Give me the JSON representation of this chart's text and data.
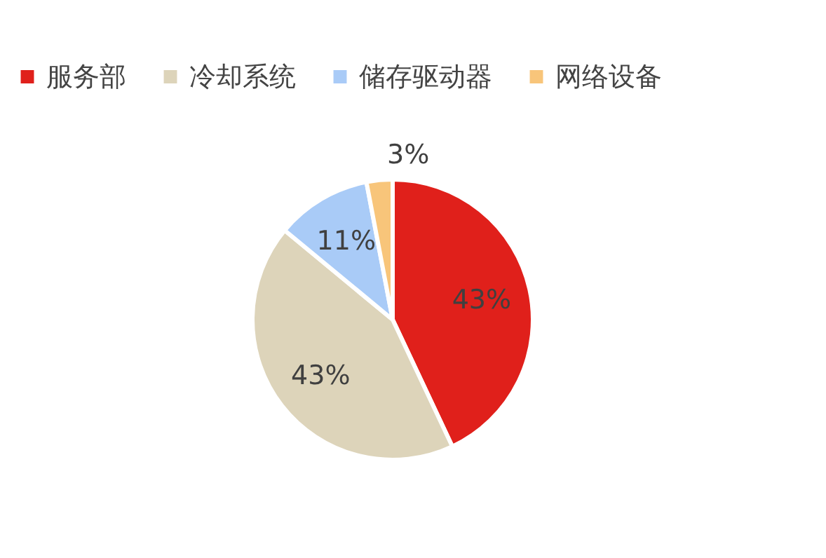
{
  "chart_data": {
    "type": "pie",
    "categories": [
      "服务部",
      "冷却系统",
      "储存驱动器",
      "网络设备"
    ],
    "values": [
      43,
      43,
      11,
      3
    ],
    "colors": [
      "#e0201b",
      "#ddd4ba",
      "#a9cbf7",
      "#f8c57a"
    ],
    "value_labels": [
      "43%",
      "43%",
      "11%",
      "3%"
    ],
    "legend": "top"
  }
}
